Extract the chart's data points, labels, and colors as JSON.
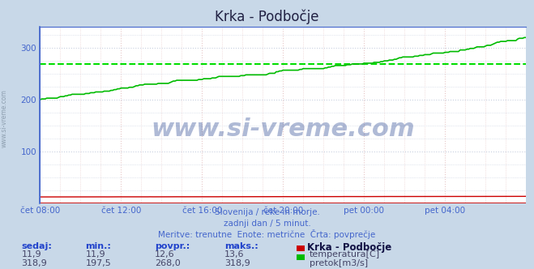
{
  "title": "Krka - Podbočje",
  "fig_bg_color": "#c8d8e8",
  "plot_bg_color": "#ffffff",
  "grid_color_v": "#e8c8c8",
  "grid_color_h": "#c8d0e0",
  "ylabel": "",
  "xlabel": "",
  "xlim_start": 0,
  "xlim_end": 288,
  "ylim": [
    0,
    340
  ],
  "yticks": [
    100,
    200,
    300
  ],
  "xtick_labels": [
    "čet 08:00",
    "čet 12:00",
    "čet 16:00",
    "čet 20:00",
    "pet 00:00",
    "pet 04:00"
  ],
  "xtick_positions": [
    0,
    48,
    96,
    144,
    192,
    240
  ],
  "avg_line_value": 268.0,
  "avg_line_color": "#00dd00",
  "flow_color": "#00bb00",
  "temp_color": "#cc0000",
  "axis_color_left": "#4466cc",
  "axis_color_bottom": "#cc2222",
  "watermark_text": "www.si-vreme.com",
  "watermark_color": "#1a3a8a",
  "watermark_alpha": 0.35,
  "subtitle_lines": [
    "Slovenija / reke in morje.",
    "zadnji dan / 5 minut.",
    "Meritve: trenutne  Enote: metrične  Črta: povprečje"
  ],
  "table_headers": [
    "sedaj:",
    "min.:",
    "povpr.:",
    "maks.:"
  ],
  "table_row1": [
    "11,9",
    "11,9",
    "12,6",
    "13,6"
  ],
  "table_row2": [
    "318,9",
    "197,5",
    "268,0",
    "318,9"
  ],
  "legend_label1": "temperatura[C]",
  "legend_label2": "pretok[m3/s]",
  "station_name": "Krka - Podbočje",
  "sidewatermark": "www.si-vreme.com",
  "tick_color": "#4466cc",
  "subtitle_color": "#4466cc",
  "table_header_color": "#2244cc",
  "table_value_color": "#444466"
}
